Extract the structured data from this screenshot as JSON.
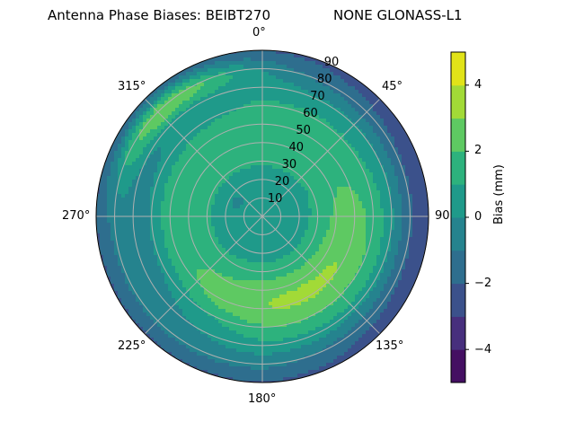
{
  "chart_data": {
    "type": "polar-contour",
    "title": "Antenna Phase Biases: BEIBT270",
    "subtitle": "NONE GLONASS-L1",
    "angular_axis": {
      "direction": "clockwise",
      "zero_location": "N",
      "tick_labels": [
        "0°",
        "45°",
        "90",
        "135°",
        "180°",
        "225°",
        "270°",
        "315°"
      ],
      "ticks_deg": [
        0,
        45,
        90,
        135,
        180,
        225,
        270,
        315
      ]
    },
    "radial_axis": {
      "range": [
        0,
        90
      ],
      "tick_labels": [
        "10",
        "20",
        "30",
        "40",
        "50",
        "60",
        "70",
        "80",
        "90"
      ],
      "ticks": [
        10,
        20,
        30,
        40,
        50,
        60,
        70,
        80,
        90
      ],
      "label_angle_deg": 22.5
    },
    "grid": true,
    "colorbar": {
      "label": "Bias (mm)",
      "range": [
        -5,
        5
      ],
      "levels": [
        -5,
        -4,
        -3,
        -2,
        -1,
        0,
        1,
        2,
        3,
        4,
        5
      ],
      "tick_labels": [
        "−4",
        "−2",
        "0",
        "2",
        "4"
      ],
      "ticks": [
        -4,
        -2,
        0,
        2,
        4
      ],
      "colors": [
        "#440f62",
        "#472f7d",
        "#3b518b",
        "#2e6e8e",
        "#25838e",
        "#1f9a8a",
        "#2db27d",
        "#5ec962",
        "#a2da37",
        "#e1e318"
      ]
    },
    "regions": [
      {
        "description": "background near center",
        "bias_mm": 0.5,
        "level": "0..1"
      },
      {
        "description": "broad ring at zenith 35-60, azimuth 300-60",
        "bias_mm": 1.5,
        "level": "1..2"
      },
      {
        "description": "crescent max at zenith 30-65, azimuth 90-210",
        "bias_mm": 2.5,
        "level": "2..3"
      },
      {
        "description": "small patch near 315 at zenith 80-90",
        "bias_mm": 2.5,
        "level": "2..3"
      },
      {
        "description": "outer rim east 70-110 azimuth",
        "bias_mm": -2.5,
        "level": "-3..-2"
      },
      {
        "description": "outer rim north",
        "bias_mm": -1.5,
        "level": "-2..-1"
      },
      {
        "description": "west 240-280 at zenith 60-85",
        "bias_mm": -1.5,
        "level": "-2..-1"
      },
      {
        "description": "small dip near center azimuth 300",
        "bias_mm": -0.5,
        "level": "-1..0"
      }
    ]
  }
}
